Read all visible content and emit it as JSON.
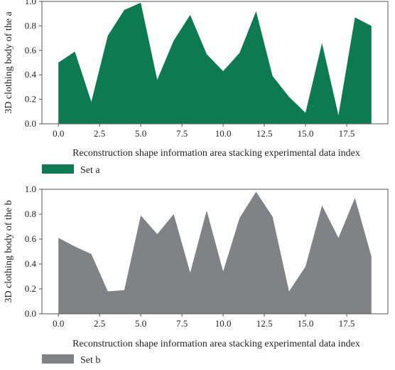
{
  "chart_data": [
    {
      "type": "area",
      "x": [
        0,
        1,
        2,
        3,
        4,
        5,
        6,
        7,
        8,
        9,
        10,
        11,
        12,
        13,
        14,
        15,
        16,
        17,
        18,
        19
      ],
      "series": [
        {
          "name": "Set a",
          "color": "#0e7a52",
          "values": [
            0.5,
            0.59,
            0.18,
            0.72,
            0.93,
            0.99,
            0.36,
            0.68,
            0.89,
            0.57,
            0.43,
            0.58,
            0.92,
            0.39,
            0.22,
            0.09,
            0.66,
            0.07,
            0.87,
            0.8
          ]
        }
      ],
      "xlim": [
        -1,
        20
      ],
      "ylim": [
        0,
        1.0
      ],
      "xticks": [
        0.0,
        2.5,
        5.0,
        7.5,
        10.0,
        12.5,
        15.0,
        17.5
      ],
      "xtick_labels": [
        "0.0",
        "2.5",
        "5.0",
        "7.5",
        "10.0",
        "12.5",
        "15.0",
        "17.5"
      ],
      "yticks": [
        0.0,
        0.2,
        0.4,
        0.6,
        0.8,
        1.0
      ],
      "ytick_labels": [
        "0.0",
        "0.2",
        "0.4",
        "0.6",
        "0.8",
        "1.0"
      ],
      "xlabel": "Reconstruction shape information area stacking experimental data index",
      "ylabel": "3D clothing body of the a",
      "legend": {
        "position": "bottom-left",
        "label": "Set a"
      },
      "grid": false
    },
    {
      "type": "area",
      "x": [
        0,
        1,
        2,
        3,
        4,
        5,
        6,
        7,
        8,
        9,
        10,
        11,
        12,
        13,
        14,
        15,
        16,
        17,
        18,
        19
      ],
      "series": [
        {
          "name": "Set b",
          "color": "#808285",
          "values": [
            0.61,
            0.54,
            0.48,
            0.18,
            0.19,
            0.79,
            0.64,
            0.8,
            0.33,
            0.83,
            0.34,
            0.77,
            0.98,
            0.78,
            0.18,
            0.38,
            0.87,
            0.61,
            0.93,
            0.46
          ]
        }
      ],
      "xlim": [
        -1,
        20
      ],
      "ylim": [
        0,
        1.0
      ],
      "xticks": [
        0.0,
        2.5,
        5.0,
        7.5,
        10.0,
        12.5,
        15.0,
        17.5
      ],
      "xtick_labels": [
        "0.0",
        "2.5",
        "5.0",
        "7.5",
        "10.0",
        "12.5",
        "15.0",
        "17.5"
      ],
      "yticks": [
        0.0,
        0.2,
        0.4,
        0.6,
        0.8,
        1.0
      ],
      "ytick_labels": [
        "0.0",
        "0.2",
        "0.4",
        "0.6",
        "0.8",
        "1.0"
      ],
      "xlabel": "Reconstruction shape information area stacking experimental data index",
      "ylabel": "3D clothing body of the b",
      "legend": {
        "position": "bottom-left",
        "label": "Set b"
      },
      "grid": false
    }
  ]
}
